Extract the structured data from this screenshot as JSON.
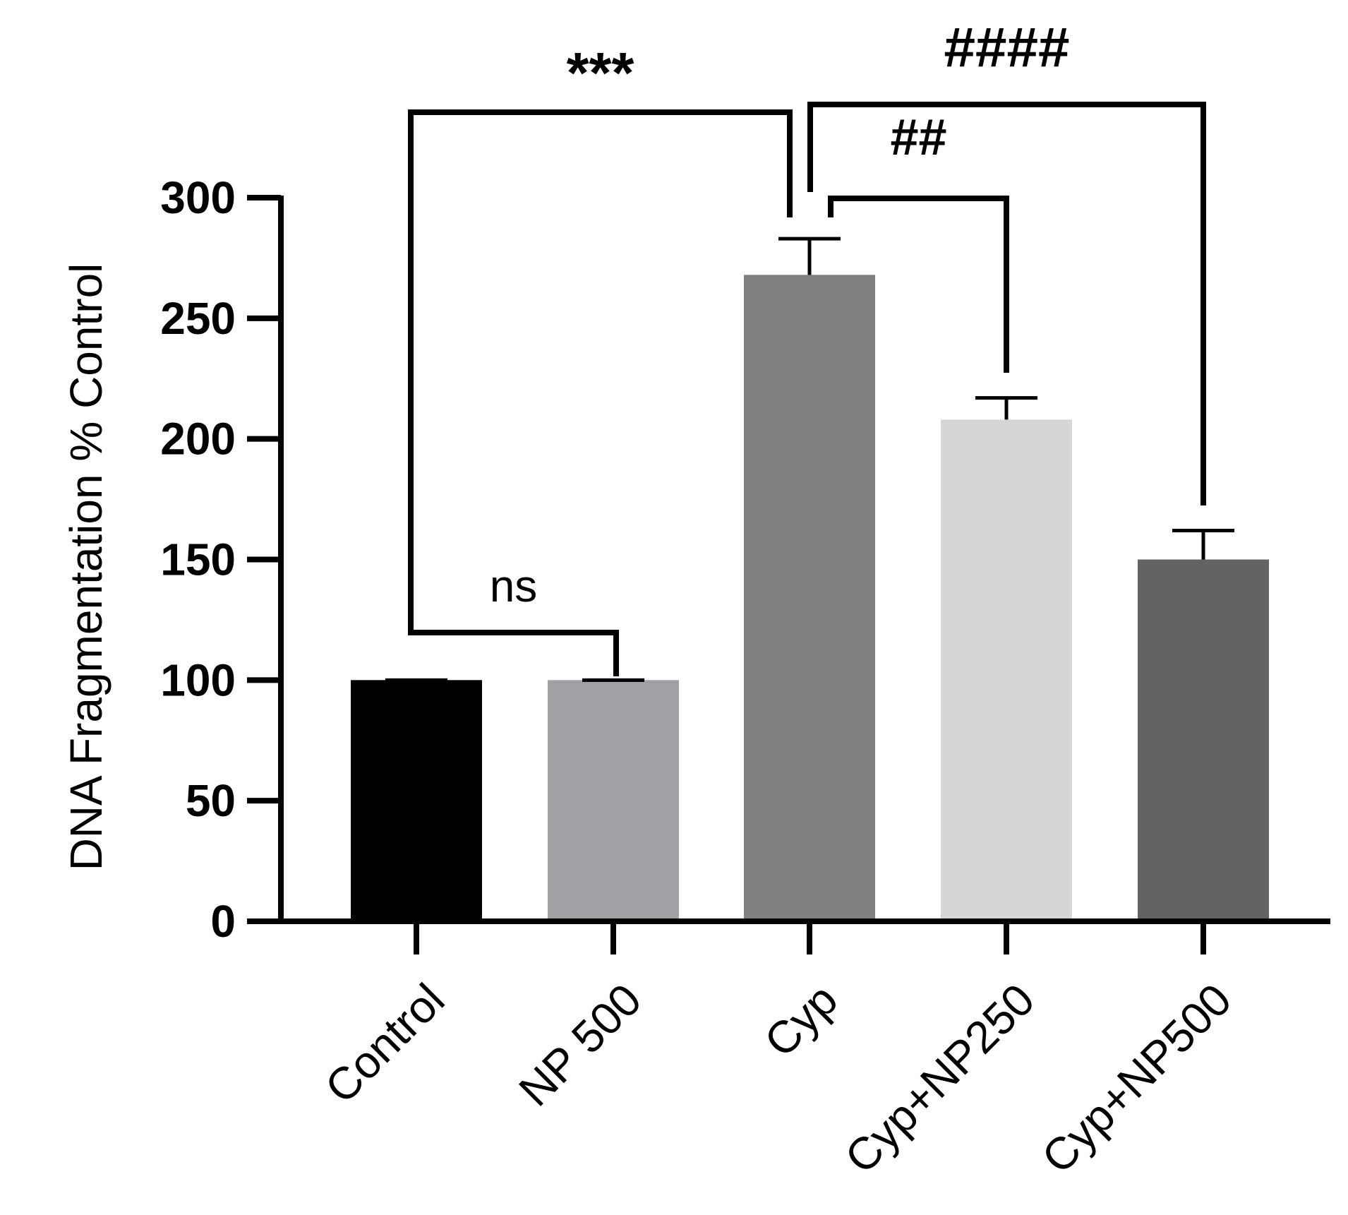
{
  "chart_data": {
    "type": "bar",
    "title": "",
    "xlabel": "",
    "ylabel": "DNA Fragmentation % Control",
    "ylim": [
      0,
      300
    ],
    "yticks": [
      0,
      50,
      100,
      150,
      200,
      250,
      300
    ],
    "ytick_labels": [
      "0",
      "50",
      "100",
      "150",
      "200",
      "250",
      "300"
    ],
    "grid": false,
    "legend": "none",
    "categories": [
      "Control",
      "NP 500",
      "Cyp",
      "Cyp+NP250",
      "Cyp+NP500"
    ],
    "values": [
      100,
      100,
      268,
      208,
      150
    ],
    "errors": [
      0,
      0,
      15,
      9,
      12
    ],
    "colors": [
      "#000000",
      "#a1a1a5",
      "#808080",
      "#d6d6d6",
      "#636363"
    ],
    "significance": [
      {
        "from": "Control",
        "to": "NP 500",
        "label": "ns"
      },
      {
        "from": "Control",
        "to": "Cyp",
        "label": "***"
      },
      {
        "from": "Cyp",
        "to": "Cyp+NP250",
        "label": "##"
      },
      {
        "from": "Cyp",
        "to": "Cyp+NP500",
        "label": "####"
      }
    ]
  }
}
